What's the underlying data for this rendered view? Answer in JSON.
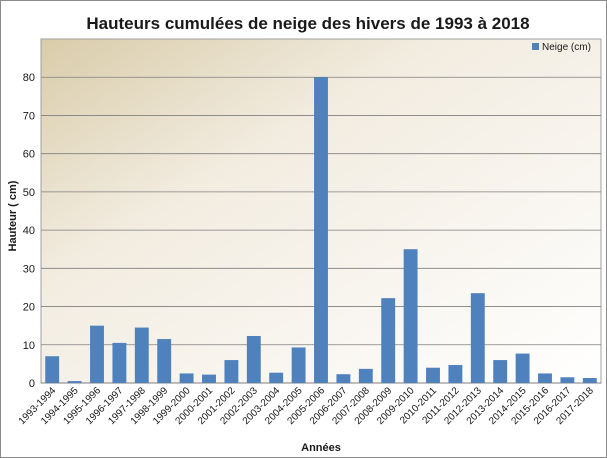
{
  "chart_data": {
    "type": "bar",
    "title": "Hauteurs cumulées de neige des hivers de 1993 à 2018",
    "xlabel": "Années",
    "ylabel": "Hauteur ( cm)",
    "ylim": [
      0,
      90
    ],
    "yticks": [
      0,
      10,
      20,
      30,
      40,
      50,
      60,
      70,
      80
    ],
    "grid": true,
    "legend_position": "top-right",
    "bar_color": "#4f81bd",
    "categories": [
      "1993-1994",
      "1994-1995",
      "1995-1996",
      "1996-1997",
      "1997-1998",
      "1998-1999",
      "1999-2000",
      "2000-2001",
      "2001-2002",
      "2002-2003",
      "2003-2004",
      "2004-2005",
      "2005-2006",
      "2006-2007",
      "2007-2008",
      "2008-2009",
      "2009-2010",
      "2010-2011",
      "2011-2012",
      "2012-2013",
      "2013-2014",
      "2014-2015",
      "2015-2016",
      "2016-2017",
      "2017-2018"
    ],
    "series": [
      {
        "name": "Neige (cm)",
        "values": [
          7,
          0.5,
          15,
          10.5,
          14.5,
          11.5,
          2.5,
          2.2,
          6,
          12.3,
          2.7,
          9.3,
          80,
          2.3,
          3.7,
          22.2,
          35,
          4,
          4.7,
          23.5,
          6,
          7.7,
          2.5,
          1.5,
          1.3
        ]
      }
    ]
  }
}
